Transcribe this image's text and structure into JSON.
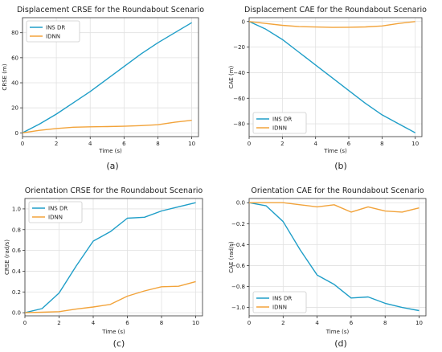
{
  "colors": {
    "ins": "#1f9ec8",
    "idnn": "#f2a33a",
    "grid": "#e1e1e1",
    "axis": "#333333"
  },
  "chart_data": [
    {
      "type": "line",
      "title": "Displacement CRSE for the Roundabout Scenario",
      "xlabel": "Time (s)",
      "ylabel": "CRSE (m)",
      "caption": "(a)",
      "xlim": [
        0,
        10.4
      ],
      "ylim": [
        -3,
        92
      ],
      "xticks": [
        0,
        2,
        4,
        6,
        8,
        10
      ],
      "xtick_labels": [
        "0",
        "2",
        "4",
        "6",
        "8",
        "10"
      ],
      "yticks": [
        0,
        20,
        40,
        60,
        80
      ],
      "ytick_labels": [
        "0",
        "20",
        "40",
        "60",
        "80"
      ],
      "grid": true,
      "legend": "top-left",
      "x": [
        0,
        1,
        2,
        3,
        4,
        5,
        6,
        7,
        8,
        9,
        10
      ],
      "series": [
        {
          "name": "INS DR",
          "color_key": "ins",
          "values": [
            0,
            7,
            15,
            24,
            33,
            43,
            53,
            63,
            72,
            80,
            88
          ]
        },
        {
          "name": "IDNN",
          "color_key": "idnn",
          "values": [
            0,
            2,
            3.5,
            4.5,
            4.8,
            5,
            5.3,
            5.8,
            6.5,
            8.5,
            10
          ]
        }
      ]
    },
    {
      "type": "line",
      "title": "Displacement CAE for the Roundabout Scenario",
      "xlabel": "Time (s)",
      "ylabel": "CAE (m)",
      "caption": "(b)",
      "xlim": [
        0,
        10.4
      ],
      "ylim": [
        -90,
        3
      ],
      "xticks": [
        0,
        2,
        4,
        6,
        8,
        10
      ],
      "xtick_labels": [
        "0",
        "2",
        "4",
        "6",
        "8",
        "10"
      ],
      "yticks": [
        0,
        -20,
        -40,
        -60,
        -80
      ],
      "ytick_labels": [
        "0",
        "−20",
        "−40",
        "−60",
        "−80"
      ],
      "grid": true,
      "legend": "bottom-left",
      "x": [
        0,
        1,
        2,
        3,
        4,
        5,
        6,
        7,
        8,
        9,
        10
      ],
      "series": [
        {
          "name": "INS DR",
          "color_key": "ins",
          "values": [
            0,
            -6,
            -14,
            -24,
            -34,
            -44,
            -54,
            -64,
            -73,
            -80,
            -87
          ]
        },
        {
          "name": "IDNN",
          "color_key": "idnn",
          "values": [
            0,
            -1.5,
            -3,
            -4,
            -4.3,
            -4.6,
            -4.5,
            -4.2,
            -3.5,
            -1.5,
            0
          ]
        }
      ]
    },
    {
      "type": "line",
      "title": "Orientation CRSE for the Roundabout Scenario",
      "xlabel": "Time (s)",
      "ylabel": "CRSE (rad/s)",
      "caption": "(c)",
      "xlim": [
        0,
        10.4
      ],
      "ylim": [
        -0.03,
        1.1
      ],
      "xticks": [
        0,
        2,
        4,
        6,
        8,
        10
      ],
      "xtick_labels": [
        "0",
        "2",
        "4",
        "6",
        "8",
        "10"
      ],
      "yticks": [
        0,
        0.2,
        0.4,
        0.6,
        0.8,
        1.0
      ],
      "ytick_labels": [
        "0.0",
        "0.2",
        "0.4",
        "0.6",
        "0.8",
        "1.0"
      ],
      "grid": true,
      "legend": "top-left",
      "x": [
        0,
        1,
        2,
        3,
        4,
        5,
        6,
        7,
        8,
        9,
        10
      ],
      "series": [
        {
          "name": "INS DR",
          "color_key": "ins",
          "values": [
            0,
            0.04,
            0.19,
            0.45,
            0.69,
            0.78,
            0.91,
            0.92,
            0.98,
            1.02,
            1.06
          ]
        },
        {
          "name": "IDNN",
          "color_key": "idnn",
          "values": [
            0,
            0.005,
            0.01,
            0.035,
            0.055,
            0.08,
            0.16,
            0.21,
            0.25,
            0.255,
            0.3
          ]
        }
      ]
    },
    {
      "type": "line",
      "title": "Orientation CAE for the Roundabout Scenario",
      "xlabel": "Time (s)",
      "ylabel": "CAE (rad/s)",
      "caption": "(d)",
      "xlim": [
        0,
        10.4
      ],
      "ylim": [
        -1.08,
        0.04
      ],
      "xticks": [
        0,
        2,
        4,
        6,
        8,
        10
      ],
      "xtick_labels": [
        "0",
        "2",
        "4",
        "6",
        "8",
        "10"
      ],
      "yticks": [
        0,
        -0.2,
        -0.4,
        -0.6,
        -0.8,
        -1.0
      ],
      "ytick_labels": [
        "0.0",
        "−0.2",
        "−0.4",
        "−0.6",
        "−0.8",
        "−1.0"
      ],
      "grid": true,
      "legend": "bottom-left",
      "x": [
        0,
        1,
        2,
        3,
        4,
        5,
        6,
        7,
        8,
        9,
        10
      ],
      "series": [
        {
          "name": "INS DR",
          "color_key": "ins",
          "values": [
            0,
            -0.03,
            -0.18,
            -0.45,
            -0.69,
            -0.78,
            -0.91,
            -0.9,
            -0.96,
            -1.0,
            -1.03
          ]
        },
        {
          "name": "IDNN",
          "color_key": "idnn",
          "values": [
            0,
            0,
            0,
            -0.02,
            -0.04,
            -0.02,
            -0.09,
            -0.04,
            -0.08,
            -0.09,
            -0.05
          ]
        }
      ]
    }
  ]
}
